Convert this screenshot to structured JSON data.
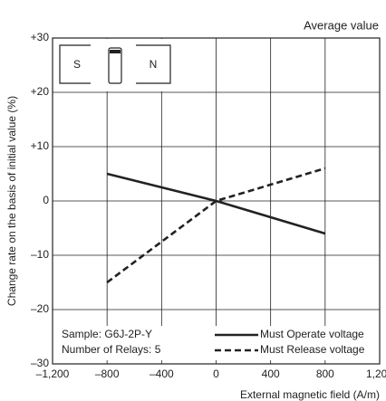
{
  "chart_data": {
    "type": "line",
    "title": "Average value",
    "x_label": "External magnetic field (A/m)",
    "y_label": "Change rate on the basis of initial value (%)",
    "x": [
      -800,
      0,
      800
    ],
    "series": [
      {
        "name": "Must Operate voltage",
        "color": "#222222",
        "style": "solid",
        "values": [
          5,
          0,
          -6
        ]
      },
      {
        "name": "Must Release voltage",
        "color": "#222222",
        "style": "dashed",
        "values": [
          -15,
          0,
          6
        ]
      }
    ],
    "xlim": [
      -1200,
      1200
    ],
    "xticks": [
      {
        "value": -1200,
        "label": "–1,200"
      },
      {
        "value": -800,
        "label": "–800"
      },
      {
        "value": -400,
        "label": "–400"
      },
      0,
      400,
      800,
      {
        "value": 1200,
        "label": "1,200"
      }
    ],
    "ylim": [
      -30,
      30
    ],
    "yticks": [
      {
        "value": -30,
        "label": "–30"
      },
      {
        "value": -20,
        "label": "–20"
      },
      {
        "value": -10,
        "label": "–10"
      },
      0,
      {
        "value": 10,
        "label": "+10"
      },
      {
        "value": 20,
        "label": "+20"
      },
      {
        "value": 30,
        "label": "+30"
      }
    ],
    "grid": true,
    "annotations": [
      "Sample: G6J-2P-Y",
      "Number of Relays: 5",
      "S",
      "N"
    ]
  }
}
